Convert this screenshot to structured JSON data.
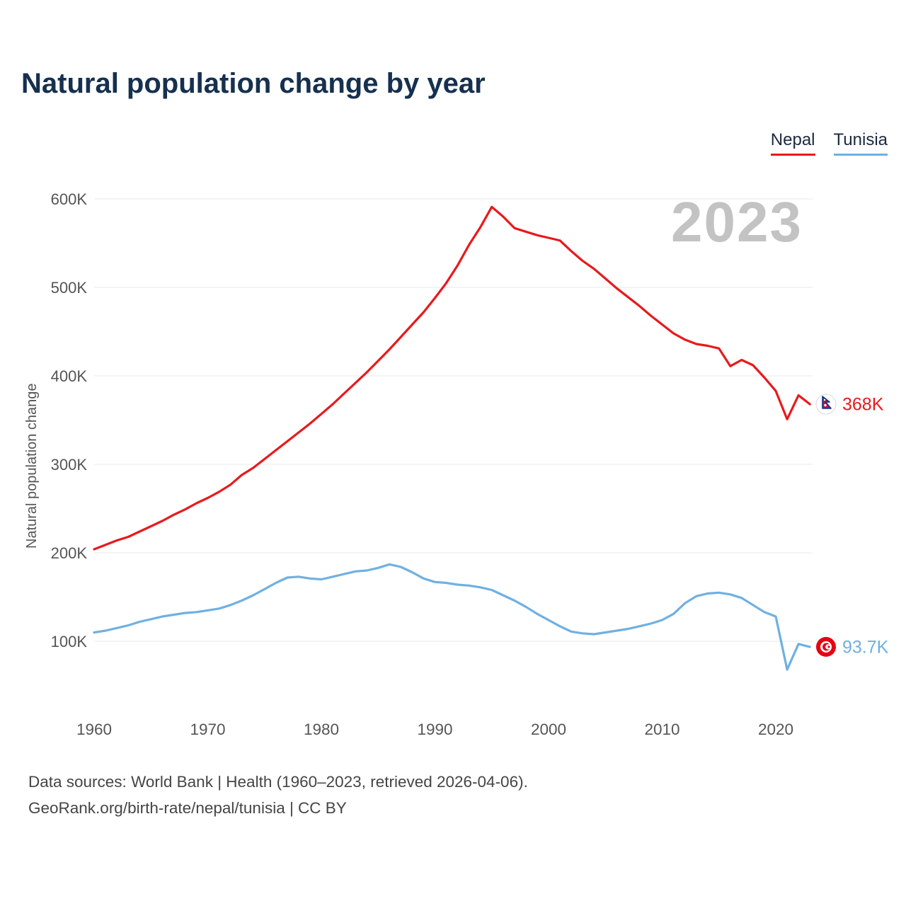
{
  "title": "Natural population change by year",
  "watermark": "2023",
  "ylabel": "Natural population change",
  "legend": {
    "items": [
      {
        "label": "Nepal",
        "color": "#e8191c"
      },
      {
        "label": "Tunisia",
        "color": "#6fb0e3"
      }
    ]
  },
  "footer": {
    "line1": "Data sources: World Bank | Health (1960–2023, retrieved 2026-04-06).",
    "line2": "GeoRank.org/birth-rate/nepal/tunisia | CC BY"
  },
  "chart_data": {
    "type": "line",
    "title": "Natural population change by year",
    "xlabel": "",
    "ylabel": "Natural population change",
    "x_start": 1960,
    "x_end": 2023,
    "x_ticks": [
      1960,
      1970,
      1980,
      1990,
      2000,
      2010,
      2020
    ],
    "y_ticks": [
      {
        "value": 100,
        "label": "100K"
      },
      {
        "value": 200,
        "label": "200K"
      },
      {
        "value": 300,
        "label": "300K"
      },
      {
        "value": 400,
        "label": "400K"
      },
      {
        "value": 500,
        "label": "500K"
      },
      {
        "value": 600,
        "label": "600K"
      }
    ],
    "ylim": [
      50,
      620
    ],
    "grid": "horizontal",
    "legend_position": "top-right",
    "unit": "thousands of people per year",
    "series": [
      {
        "name": "Nepal",
        "color": "#e8191c",
        "flag": "nepal",
        "end_label": "368K",
        "values": [
          204,
          209,
          214,
          218,
          224,
          230,
          236,
          243,
          249,
          256,
          262,
          269,
          277,
          288,
          296,
          306,
          316,
          326,
          336,
          346,
          357,
          368,
          380,
          392,
          404,
          417,
          430,
          444,
          458,
          472,
          488,
          505,
          525,
          548,
          568,
          591,
          580,
          567,
          563,
          559,
          556,
          553,
          541,
          530,
          521,
          510,
          499,
          489,
          479,
          468,
          458,
          448,
          441,
          436,
          434,
          431,
          411,
          418,
          412,
          398,
          383,
          351,
          378,
          368
        ]
      },
      {
        "name": "Tunisia",
        "color": "#6fb0e3",
        "flag": "tunisia",
        "end_label": "93.7K",
        "values": [
          110,
          112,
          115,
          118,
          122,
          125,
          128,
          130,
          132,
          133,
          135,
          137,
          141,
          146,
          152,
          159,
          166,
          172,
          173,
          171,
          170,
          173,
          176,
          179,
          180,
          183,
          187,
          184,
          178,
          171,
          167,
          166,
          164,
          163,
          161,
          158,
          152,
          146,
          139,
          131,
          124,
          117,
          111,
          109,
          108,
          110,
          112,
          114,
          117,
          120,
          124,
          131,
          143,
          151,
          154,
          155,
          153,
          149,
          141,
          133,
          128,
          68,
          97,
          93.7
        ]
      }
    ]
  }
}
